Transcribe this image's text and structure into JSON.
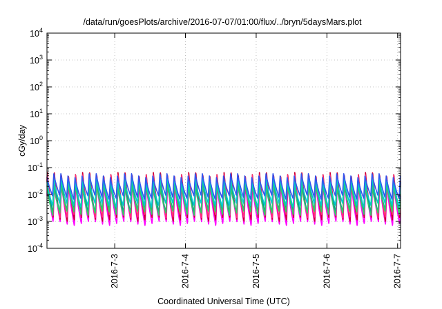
{
  "chart_data": {
    "type": "line",
    "title": "/data/run/goesPlots/archive/2016-07-07/01:00/flux/../bryn/5daysMars.plot",
    "xlabel": "Coordinated Universal Time (UTC)",
    "ylabel": "cGy/day",
    "y_scale": "log",
    "ylim": [
      0.0001,
      10000
    ],
    "y_ticks": [
      {
        "value": 0.0001,
        "base": "10",
        "exp": "-4"
      },
      {
        "value": 0.001,
        "base": "10",
        "exp": "-3"
      },
      {
        "value": 0.01,
        "base": "10",
        "exp": "-2"
      },
      {
        "value": 0.1,
        "base": "10",
        "exp": "-1"
      },
      {
        "value": 1,
        "base": "10",
        "exp": "0"
      },
      {
        "value": 10,
        "base": "10",
        "exp": "1"
      },
      {
        "value": 100,
        "base": "10",
        "exp": "2"
      },
      {
        "value": 1000,
        "base": "10",
        "exp": "3"
      },
      {
        "value": 10000,
        "base": "10",
        "exp": "4"
      }
    ],
    "xlim": [
      "2016-07-02 01:00",
      "2016-07-07 01:00"
    ],
    "x_ticks": [
      {
        "value": "2016-07-03 00:00",
        "label": "2016-7-3"
      },
      {
        "value": "2016-07-04 00:00",
        "label": "2016-7-4"
      },
      {
        "value": "2016-07-05 00:00",
        "label": "2016-7-5"
      },
      {
        "value": "2016-07-06 00:00",
        "label": "2016-7-6"
      },
      {
        "value": "2016-07-07 00:00",
        "label": "2016-7-7"
      }
    ],
    "grid": true,
    "cycle_hours": 2.4,
    "series": [
      {
        "color": "#ff00ff",
        "peak": 0.03,
        "trough": 0.0008
      },
      {
        "color": "#cc0033",
        "peak": 0.07,
        "trough": 0.0012
      },
      {
        "color": "#ff3377",
        "peak": 0.05,
        "trough": 0.0015
      },
      {
        "color": "#009999",
        "peak": 0.035,
        "trough": 0.0025
      },
      {
        "color": "#33cc66",
        "peak": 0.025,
        "trough": 0.002
      },
      {
        "color": "#00cccc",
        "peak": 0.04,
        "trough": 0.004
      },
      {
        "color": "#3355ee",
        "peak": 0.055,
        "trough": 0.008
      }
    ]
  }
}
